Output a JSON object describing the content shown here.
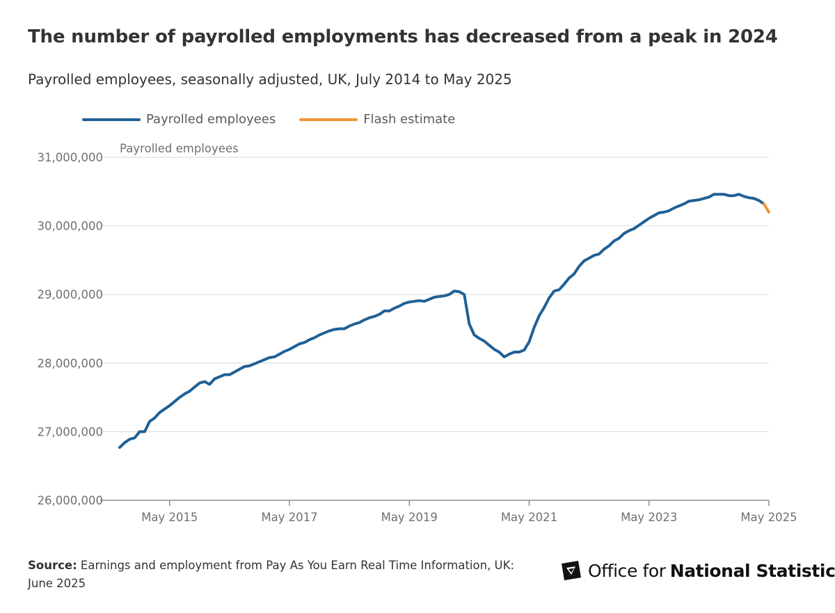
{
  "title": "The number of payrolled employments has decreased from a peak in 2024",
  "subtitle": "Payrolled employees, seasonally adjusted, UK, July 2014 to May 2025",
  "legend": {
    "series1": "Payrolled employees",
    "series2": "Flash estimate"
  },
  "colors": {
    "series1": "#206095",
    "series2": "#f39431",
    "grid": "#d9d9d9",
    "axis": "#414042"
  },
  "source": {
    "label": "Source:",
    "text": " Earnings and employment from Pay As You Earn Real Time Information, UK: June 2025"
  },
  "logo": {
    "text_regular": "Office for",
    "text_bold": "National Statistics",
    "icon": "ons-logo-icon"
  },
  "chart_data": {
    "type": "line",
    "ylabel": "Payrolled employees",
    "xlabel": "",
    "ylim": [
      26000000,
      31000000
    ],
    "yticks": [
      26000000,
      27000000,
      28000000,
      29000000,
      30000000,
      31000000
    ],
    "ytick_labels": [
      "26,000,000",
      "27,000,000",
      "28,000,000",
      "29,000,000",
      "30,000,000",
      "31,000,000"
    ],
    "xlim": [
      "2014-07",
      "2025-05"
    ],
    "xtick_labels": [
      "May 2015",
      "May 2017",
      "May 2019",
      "May 2021",
      "May 2023",
      "May 2025"
    ],
    "xtick_dates": [
      "2015-05",
      "2017-05",
      "2019-05",
      "2021-05",
      "2023-05",
      "2025-05"
    ],
    "grid": true,
    "legend_position": "top-left",
    "series": [
      {
        "name": "Payrolled employees",
        "points": [
          [
            "2014-07",
            26770000
          ],
          [
            "2014-08",
            26840000
          ],
          [
            "2014-09",
            26890000
          ],
          [
            "2014-10",
            26910000
          ],
          [
            "2014-11",
            27000000
          ],
          [
            "2014-12",
            27000000
          ],
          [
            "2015-01",
            27150000
          ],
          [
            "2015-02",
            27200000
          ],
          [
            "2015-03",
            27280000
          ],
          [
            "2015-04",
            27330000
          ],
          [
            "2015-05",
            27380000
          ],
          [
            "2015-06",
            27440000
          ],
          [
            "2015-07",
            27500000
          ],
          [
            "2015-08",
            27550000
          ],
          [
            "2015-09",
            27590000
          ],
          [
            "2015-10",
            27650000
          ],
          [
            "2015-11",
            27710000
          ],
          [
            "2015-12",
            27730000
          ],
          [
            "2016-01",
            27690000
          ],
          [
            "2016-02",
            27770000
          ],
          [
            "2016-03",
            27800000
          ],
          [
            "2016-04",
            27830000
          ],
          [
            "2016-05",
            27830000
          ],
          [
            "2016-06",
            27870000
          ],
          [
            "2016-07",
            27910000
          ],
          [
            "2016-08",
            27950000
          ],
          [
            "2016-09",
            27960000
          ],
          [
            "2016-10",
            27990000
          ],
          [
            "2016-11",
            28020000
          ],
          [
            "2016-12",
            28050000
          ],
          [
            "2017-01",
            28080000
          ],
          [
            "2017-02",
            28090000
          ],
          [
            "2017-03",
            28130000
          ],
          [
            "2017-04",
            28170000
          ],
          [
            "2017-05",
            28200000
          ],
          [
            "2017-06",
            28240000
          ],
          [
            "2017-07",
            28280000
          ],
          [
            "2017-08",
            28300000
          ],
          [
            "2017-09",
            28340000
          ],
          [
            "2017-10",
            28370000
          ],
          [
            "2017-11",
            28410000
          ],
          [
            "2017-12",
            28440000
          ],
          [
            "2018-01",
            28470000
          ],
          [
            "2018-02",
            28490000
          ],
          [
            "2018-03",
            28500000
          ],
          [
            "2018-04",
            28500000
          ],
          [
            "2018-05",
            28540000
          ],
          [
            "2018-06",
            28570000
          ],
          [
            "2018-07",
            28590000
          ],
          [
            "2018-08",
            28630000
          ],
          [
            "2018-09",
            28660000
          ],
          [
            "2018-10",
            28680000
          ],
          [
            "2018-11",
            28710000
          ],
          [
            "2018-12",
            28760000
          ],
          [
            "2019-01",
            28760000
          ],
          [
            "2019-02",
            28800000
          ],
          [
            "2019-03",
            28830000
          ],
          [
            "2019-04",
            28870000
          ],
          [
            "2019-05",
            28890000
          ],
          [
            "2019-06",
            28900000
          ],
          [
            "2019-07",
            28910000
          ],
          [
            "2019-08",
            28900000
          ],
          [
            "2019-09",
            28930000
          ],
          [
            "2019-10",
            28960000
          ],
          [
            "2019-11",
            28970000
          ],
          [
            "2019-12",
            28980000
          ],
          [
            "2020-01",
            29000000
          ],
          [
            "2020-02",
            29050000
          ],
          [
            "2020-03",
            29040000
          ],
          [
            "2020-04",
            29000000
          ],
          [
            "2020-05",
            28570000
          ],
          [
            "2020-06",
            28410000
          ],
          [
            "2020-07",
            28360000
          ],
          [
            "2020-08",
            28320000
          ],
          [
            "2020-09",
            28260000
          ],
          [
            "2020-10",
            28200000
          ],
          [
            "2020-11",
            28160000
          ],
          [
            "2020-12",
            28090000
          ],
          [
            "2021-01",
            28130000
          ],
          [
            "2021-02",
            28160000
          ],
          [
            "2021-03",
            28160000
          ],
          [
            "2021-04",
            28190000
          ],
          [
            "2021-05",
            28310000
          ],
          [
            "2021-06",
            28520000
          ],
          [
            "2021-07",
            28690000
          ],
          [
            "2021-08",
            28810000
          ],
          [
            "2021-09",
            28950000
          ],
          [
            "2021-10",
            29050000
          ],
          [
            "2021-11",
            29070000
          ],
          [
            "2021-12",
            29150000
          ],
          [
            "2022-01",
            29240000
          ],
          [
            "2022-02",
            29300000
          ],
          [
            "2022-03",
            29410000
          ],
          [
            "2022-04",
            29490000
          ],
          [
            "2022-05",
            29530000
          ],
          [
            "2022-06",
            29570000
          ],
          [
            "2022-07",
            29590000
          ],
          [
            "2022-08",
            29660000
          ],
          [
            "2022-09",
            29710000
          ],
          [
            "2022-10",
            29780000
          ],
          [
            "2022-11",
            29820000
          ],
          [
            "2022-12",
            29890000
          ],
          [
            "2023-01",
            29930000
          ],
          [
            "2023-02",
            29960000
          ],
          [
            "2023-03",
            30010000
          ],
          [
            "2023-04",
            30060000
          ],
          [
            "2023-05",
            30110000
          ],
          [
            "2023-06",
            30150000
          ],
          [
            "2023-07",
            30190000
          ],
          [
            "2023-08",
            30200000
          ],
          [
            "2023-09",
            30220000
          ],
          [
            "2023-10",
            30260000
          ],
          [
            "2023-11",
            30290000
          ],
          [
            "2023-12",
            30320000
          ],
          [
            "2024-01",
            30360000
          ],
          [
            "2024-02",
            30370000
          ],
          [
            "2024-03",
            30380000
          ],
          [
            "2024-04",
            30400000
          ],
          [
            "2024-05",
            30420000
          ],
          [
            "2024-06",
            30460000
          ],
          [
            "2024-07",
            30460000
          ],
          [
            "2024-08",
            30460000
          ],
          [
            "2024-09",
            30440000
          ],
          [
            "2024-10",
            30440000
          ],
          [
            "2024-11",
            30460000
          ],
          [
            "2024-12",
            30430000
          ],
          [
            "2025-01",
            30410000
          ],
          [
            "2025-02",
            30400000
          ],
          [
            "2025-03",
            30370000
          ],
          [
            "2025-04",
            30320000
          ]
        ]
      },
      {
        "name": "Flash estimate",
        "points": [
          [
            "2025-04",
            30320000
          ],
          [
            "2025-05",
            30200000
          ]
        ]
      }
    ]
  }
}
